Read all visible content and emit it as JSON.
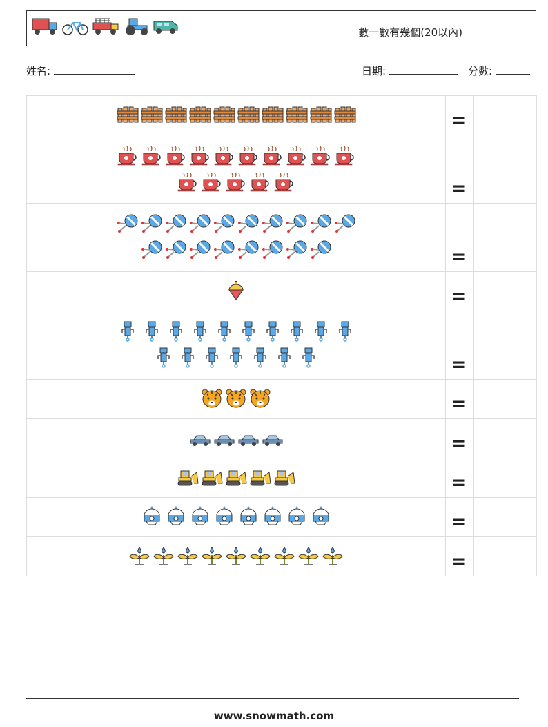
{
  "header": {
    "title": "數一數有幾個(20以內)",
    "vehicles": [
      "truck-icon",
      "bicycle-icon",
      "fire-truck-icon",
      "tractor-icon",
      "van-icon"
    ]
  },
  "info": {
    "name_label": "姓名:",
    "date_label": "日期:",
    "score_label": "分數:"
  },
  "rows": [
    {
      "icon": "fence-icon",
      "count": 10,
      "eq": "="
    },
    {
      "icon": "coffee-cup-icon",
      "count": 15,
      "eq": "="
    },
    {
      "icon": "lollipop-icon",
      "count": 18,
      "eq": "="
    },
    {
      "icon": "spinning-top-icon",
      "count": 1,
      "eq": "="
    },
    {
      "icon": "robot-icon",
      "count": 17,
      "eq": "="
    },
    {
      "icon": "tiger-icon",
      "count": 3,
      "eq": "="
    },
    {
      "icon": "car-icon",
      "count": 4,
      "eq": "="
    },
    {
      "icon": "bulldozer-icon",
      "count": 5,
      "eq": "="
    },
    {
      "icon": "robot-head-icon",
      "count": 8,
      "eq": "="
    },
    {
      "icon": "sprout-icon",
      "count": 9,
      "eq": "="
    }
  ],
  "footer": {
    "text": "www.snowmath.com"
  }
}
